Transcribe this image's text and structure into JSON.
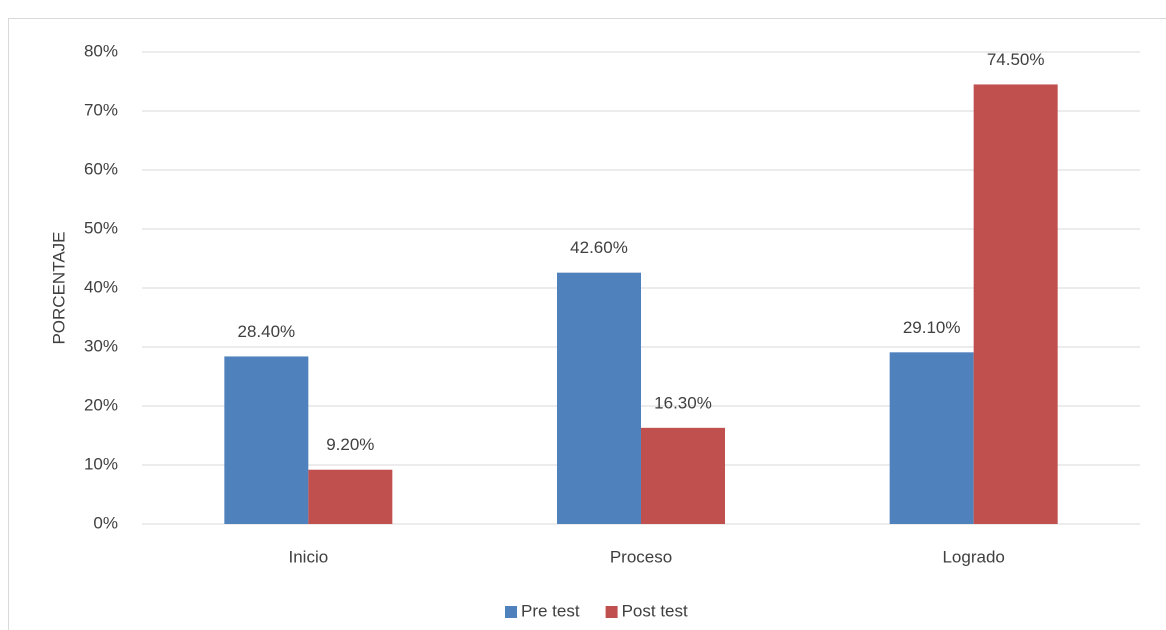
{
  "chart_data": {
    "type": "bar",
    "y_label": "PORCENTAJE",
    "categories": [
      "Inicio",
      "Proceso",
      "Logrado"
    ],
    "series": [
      {
        "name": "Pre test",
        "color": "#4f81bd",
        "values": [
          28.4,
          42.6,
          29.1
        ],
        "value_labels": [
          "28.40%",
          "42.60%",
          "29.10%"
        ]
      },
      {
        "name": "Post test",
        "color": "#c0504d",
        "values": [
          9.2,
          16.3,
          74.5
        ],
        "value_labels": [
          "9.20%",
          "16.30%",
          "74.50%"
        ]
      }
    ],
    "ylim": [
      0,
      80
    ],
    "yticks": [
      {
        "value": 0,
        "label": "0%"
      },
      {
        "value": 10,
        "label": "10%"
      },
      {
        "value": 20,
        "label": "20%"
      },
      {
        "value": 30,
        "label": "30%"
      },
      {
        "value": 40,
        "label": "40%"
      },
      {
        "value": 50,
        "label": "50%"
      },
      {
        "value": 60,
        "label": "60%"
      },
      {
        "value": 70,
        "label": "70%"
      },
      {
        "value": 80,
        "label": "80%"
      }
    ],
    "grid": true,
    "legend": "bottom"
  }
}
